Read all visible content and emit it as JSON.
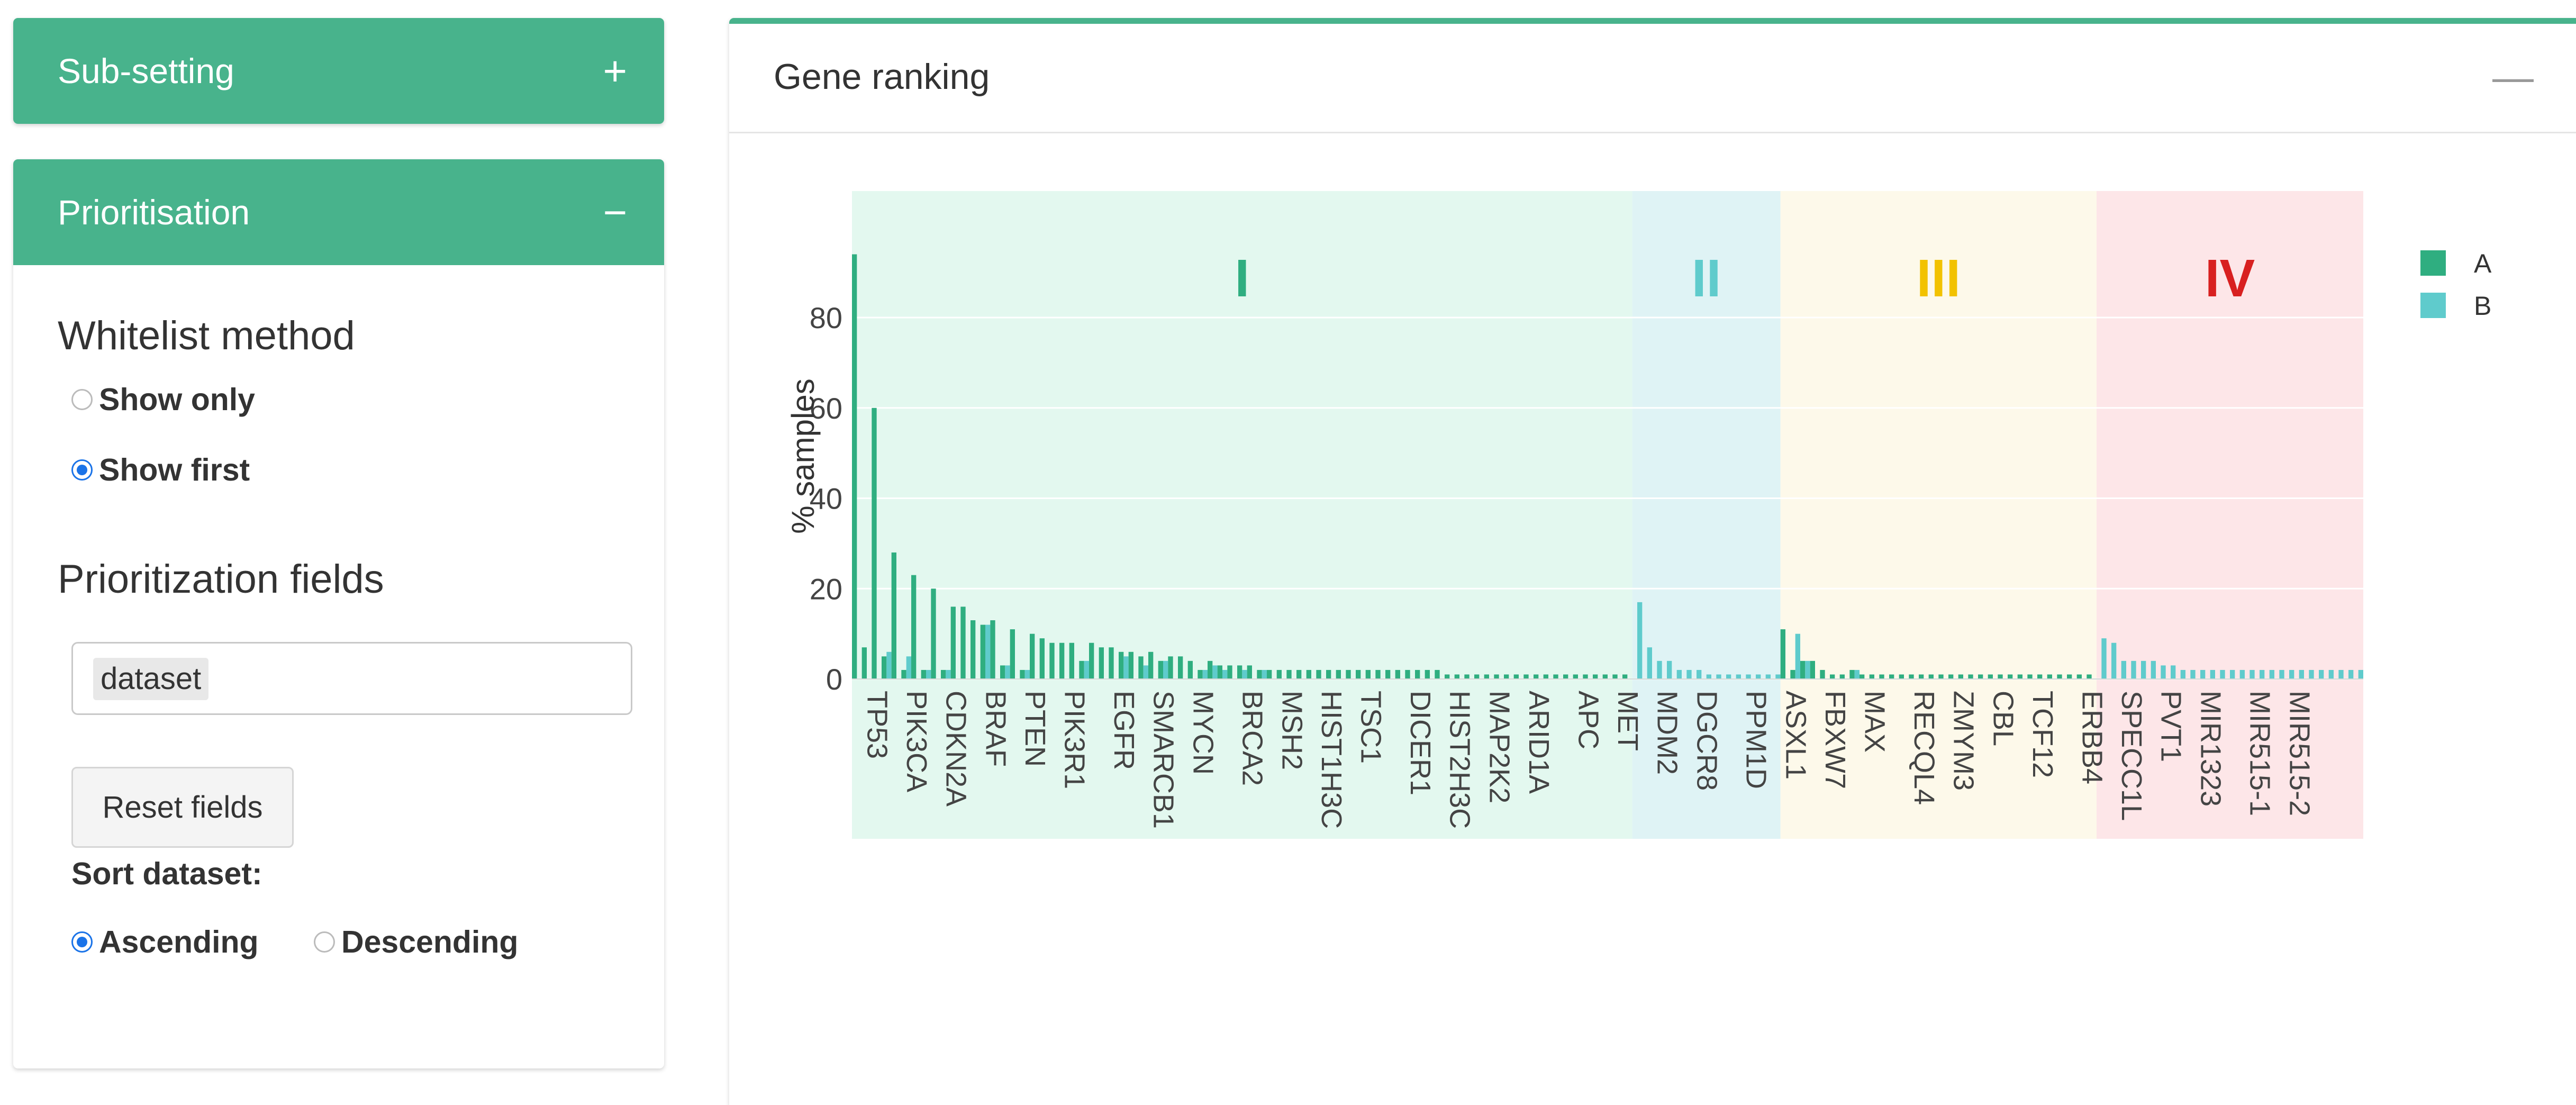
{
  "sidebar": {
    "subsetting": {
      "title": "Sub-setting",
      "toggle": "+"
    },
    "prioritisation": {
      "title": "Prioritisation",
      "toggle": "−",
      "whitelist_label": "Whitelist method",
      "whitelist_options": [
        {
          "label": "Show only",
          "selected": false
        },
        {
          "label": "Show first",
          "selected": true
        }
      ],
      "fields_label": "Prioritization fields",
      "fields_selected": "dataset",
      "reset_label": "Reset fields",
      "sort_label": "Sort dataset:",
      "sort_options": [
        {
          "label": "Ascending",
          "selected": true
        },
        {
          "label": "Descending",
          "selected": false
        }
      ]
    }
  },
  "panel": {
    "title": "Gene ranking",
    "toggle": "—"
  },
  "chart_data": {
    "type": "bar",
    "ylabel": "% samples",
    "yticks": [
      0,
      20,
      40,
      60,
      80
    ],
    "ylim": [
      0,
      100
    ],
    "legend": {
      "position": "right",
      "entries": [
        {
          "name": "A",
          "color": "#2fae80"
        },
        {
          "name": "B",
          "color": "#5fcbcc"
        }
      ]
    },
    "tiers": [
      {
        "name": "I",
        "start": 0,
        "end": 79,
        "color": "#2fae80",
        "bg": "#e3f8ef"
      },
      {
        "name": "II",
        "start": 79,
        "end": 94,
        "color": "#5fcbcc",
        "bg": "#dff3f5"
      },
      {
        "name": "III",
        "start": 94,
        "end": 126,
        "color": "#f2c200",
        "bg": "#fdf9ea"
      },
      {
        "name": "IV",
        "start": 126,
        "end": 153,
        "color": "#d82020",
        "bg": "#fde6e8"
      }
    ],
    "tick_labels": [
      {
        "i": 0,
        "label": "TP53"
      },
      {
        "i": 4,
        "label": "PIK3CA"
      },
      {
        "i": 8,
        "label": "CDKN2A"
      },
      {
        "i": 12,
        "label": "BRAF"
      },
      {
        "i": 16,
        "label": "PTEN"
      },
      {
        "i": 20,
        "label": "PIK3R1"
      },
      {
        "i": 25,
        "label": "EGFR"
      },
      {
        "i": 29,
        "label": "SMARCB1"
      },
      {
        "i": 33,
        "label": "MYCN"
      },
      {
        "i": 38,
        "label": "BRCA2"
      },
      {
        "i": 42,
        "label": "MSH2"
      },
      {
        "i": 46,
        "label": "HIST1H3C"
      },
      {
        "i": 50,
        "label": "TSC1"
      },
      {
        "i": 55,
        "label": "DICER1"
      },
      {
        "i": 59,
        "label": "HIST2H3C"
      },
      {
        "i": 63,
        "label": "MAP2K2"
      },
      {
        "i": 67,
        "label": "ARID1A"
      },
      {
        "i": 72,
        "label": "APC"
      },
      {
        "i": 76,
        "label": "MET"
      },
      {
        "i": 80,
        "label": "MDM2"
      },
      {
        "i": 84,
        "label": "DGCR8"
      },
      {
        "i": 89,
        "label": "PPM1D"
      },
      {
        "i": 93,
        "label": "ASXL1"
      },
      {
        "i": 97,
        "label": "FBXW7"
      },
      {
        "i": 101,
        "label": "MAX"
      },
      {
        "i": 106,
        "label": "RECQL4"
      },
      {
        "i": 110,
        "label": "ZMYM3"
      },
      {
        "i": 114,
        "label": "CBL"
      },
      {
        "i": 118,
        "label": "TCF12"
      },
      {
        "i": 123,
        "label": "ERBB4"
      },
      {
        "i": 127,
        "label": "SPECC1L"
      },
      {
        "i": 131,
        "label": "PVT1"
      },
      {
        "i": 135,
        "label": "MIR1323"
      },
      {
        "i": 140,
        "label": "MIR515-1"
      },
      {
        "i": 144,
        "label": "MIR515-2"
      }
    ],
    "series": [
      {
        "name": "A",
        "values": [
          94,
          7,
          60,
          5,
          28,
          2,
          23,
          2,
          20,
          2,
          16,
          16,
          13,
          12,
          13,
          3,
          11,
          2,
          10,
          9,
          8,
          8,
          8,
          4,
          8,
          7,
          7,
          6,
          6,
          5,
          6,
          4,
          5,
          5,
          4,
          2,
          4,
          3,
          3,
          3,
          3,
          2,
          2,
          2,
          2,
          2,
          2,
          2,
          2,
          2,
          2,
          2,
          2,
          2,
          2,
          2,
          2,
          2,
          2,
          2,
          1,
          1,
          1,
          1,
          1,
          1,
          1,
          1,
          1,
          1,
          1,
          1,
          1,
          1,
          1,
          1,
          1,
          1,
          1,
          0,
          0,
          0,
          0,
          0,
          0,
          0,
          0,
          0,
          0,
          0,
          0,
          0,
          0,
          0,
          11,
          2,
          4,
          4,
          2,
          1,
          1,
          2,
          1,
          1,
          1,
          1,
          1,
          1,
          1,
          1,
          1,
          1,
          1,
          1,
          1,
          1,
          1,
          1,
          1,
          1,
          1,
          1,
          1,
          1,
          1,
          1,
          0,
          0,
          0,
          0,
          0,
          0,
          0,
          0,
          0,
          0,
          0,
          0,
          0,
          0,
          0,
          0,
          0,
          0,
          0,
          0,
          0,
          0,
          0,
          0,
          0,
          0,
          0
        ]
      },
      {
        "name": "B",
        "values": [
          0,
          0,
          0,
          6,
          0,
          5,
          0,
          2,
          0,
          2,
          0,
          0,
          0,
          12,
          0,
          3,
          0,
          2,
          0,
          0,
          0,
          0,
          0,
          4,
          0,
          0,
          0,
          5,
          0,
          3,
          0,
          4,
          0,
          0,
          0,
          2,
          3,
          2,
          0,
          2,
          0,
          2,
          0,
          0,
          0,
          0,
          0,
          0,
          0,
          0,
          0,
          0,
          0,
          0,
          0,
          0,
          0,
          0,
          0,
          0,
          0,
          0,
          0,
          0,
          0,
          0,
          0,
          0,
          0,
          0,
          0,
          0,
          0,
          0,
          0,
          0,
          0,
          0,
          0,
          17,
          7,
          4,
          4,
          2,
          2,
          2,
          1,
          1,
          1,
          1,
          1,
          1,
          1,
          1,
          0,
          10,
          4,
          0,
          0,
          0,
          0,
          2,
          0,
          0,
          0,
          0,
          0,
          0,
          0,
          0,
          0,
          0,
          0,
          0,
          0,
          0,
          0,
          0,
          0,
          0,
          0,
          0,
          0,
          0,
          0,
          0,
          9,
          8,
          4,
          4,
          4,
          4,
          3,
          3,
          2,
          2,
          2,
          2,
          2,
          2,
          2,
          2,
          2,
          2,
          2,
          2,
          2,
          2,
          2,
          2,
          2,
          2,
          2
        ]
      }
    ]
  }
}
